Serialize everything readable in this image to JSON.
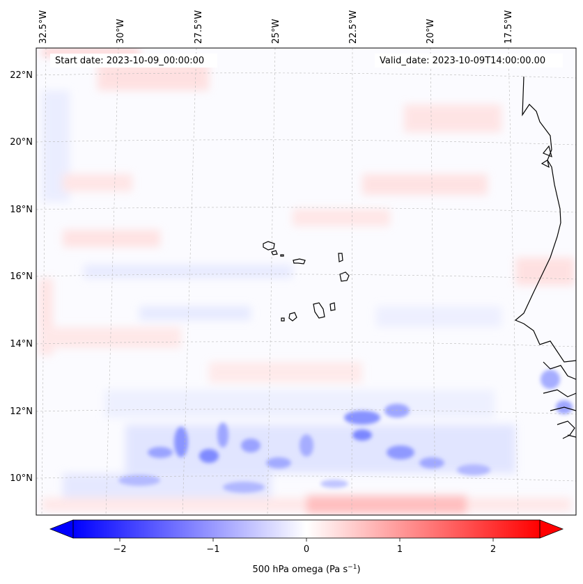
{
  "annotations": {
    "start_date": "Start date: 2023-10-09_00:00:00",
    "valid_date": "Valid_date: 2023-10-09T14:00:00.00"
  },
  "lon_labels": [
    "32.5°W",
    "30°W",
    "27.5°W",
    "25°W",
    "22.5°W",
    "20°W",
    "17.5°W"
  ],
  "lat_labels": [
    "22°N",
    "20°N",
    "18°N",
    "16°N",
    "14°N",
    "12°N",
    "10°N"
  ],
  "colorbar": {
    "label_main": "500 hPa omega (Pa s",
    "label_sup": "−1",
    "label_end": ")",
    "ticks": [
      "−2",
      "−1",
      "0",
      "1",
      "2"
    ],
    "tick_values": [
      -2,
      -1,
      0,
      1,
      2
    ],
    "vmin": -2.5,
    "vmax": 2.5,
    "color_low": "#0000ff",
    "color_mid": "#ffffff",
    "color_high": "#ff0000"
  },
  "map": {
    "variable": "500 hPa omega",
    "lon_range": [
      -33.0,
      -15.5
    ],
    "lat_range": [
      8.9,
      22.7
    ],
    "cmap": "bwr",
    "gridlines": true
  }
}
